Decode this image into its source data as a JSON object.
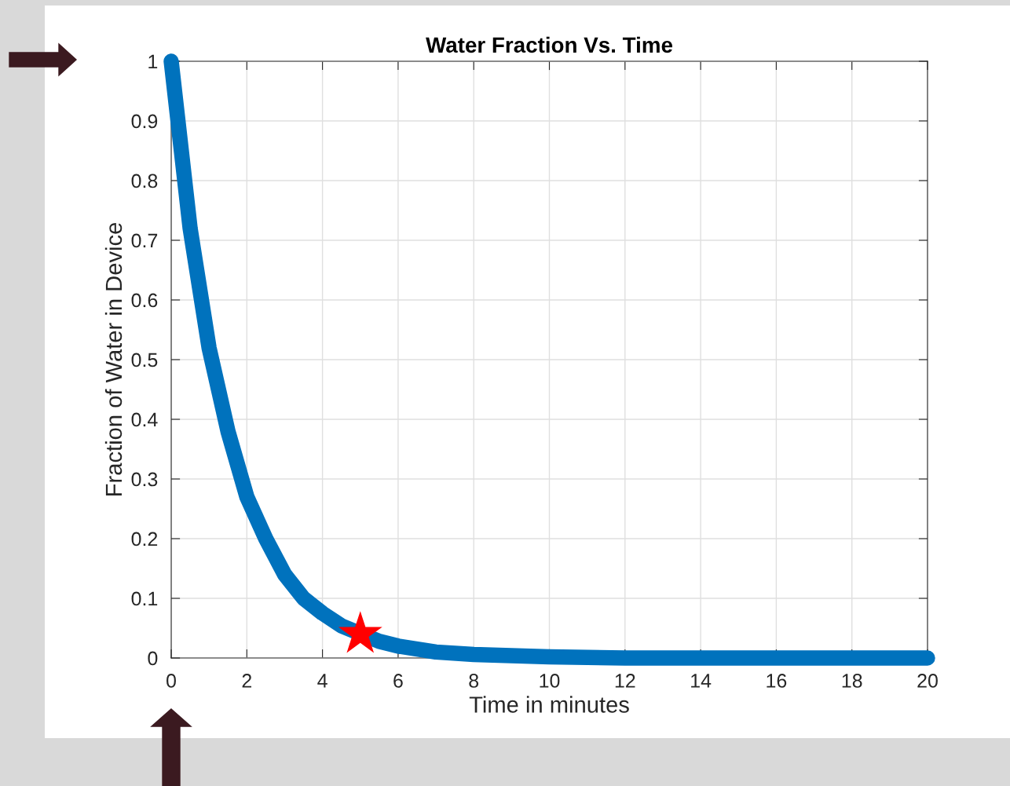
{
  "chart_data": {
    "type": "line",
    "title": "Water Fraction Vs. Time",
    "xlabel": "Time in minutes",
    "ylabel": "Fraction of Water in Device",
    "series": [
      {
        "color": "#0072bd",
        "x": [
          0,
          0.5,
          1,
          1.5,
          2,
          2.5,
          3,
          3.5,
          4,
          4.5,
          5.5,
          6,
          7,
          8,
          10,
          12,
          14,
          16,
          18,
          20
        ],
        "values": [
          1,
          0.72,
          0.52,
          0.38,
          0.27,
          0.2,
          0.14,
          0.1,
          0.075,
          0.054,
          0.028,
          0.02,
          0.01,
          0.006,
          0.002,
          0,
          0,
          0,
          0,
          0
        ],
        "marker": "none"
      },
      {
        "type": "scatter",
        "color": "#ff0000",
        "x": [
          5
        ],
        "values": [
          0.04
        ],
        "marker": "star"
      }
    ],
    "xlim": [
      0,
      20
    ],
    "ylim": [
      0,
      1
    ],
    "xticks": [
      0,
      2,
      4,
      6,
      8,
      10,
      12,
      14,
      16,
      18,
      20
    ],
    "yticks": [
      0,
      0.1,
      0.2,
      0.3,
      0.4,
      0.5,
      0.6,
      0.7,
      0.8,
      0.9,
      1
    ],
    "grid": true,
    "legend": false
  }
}
